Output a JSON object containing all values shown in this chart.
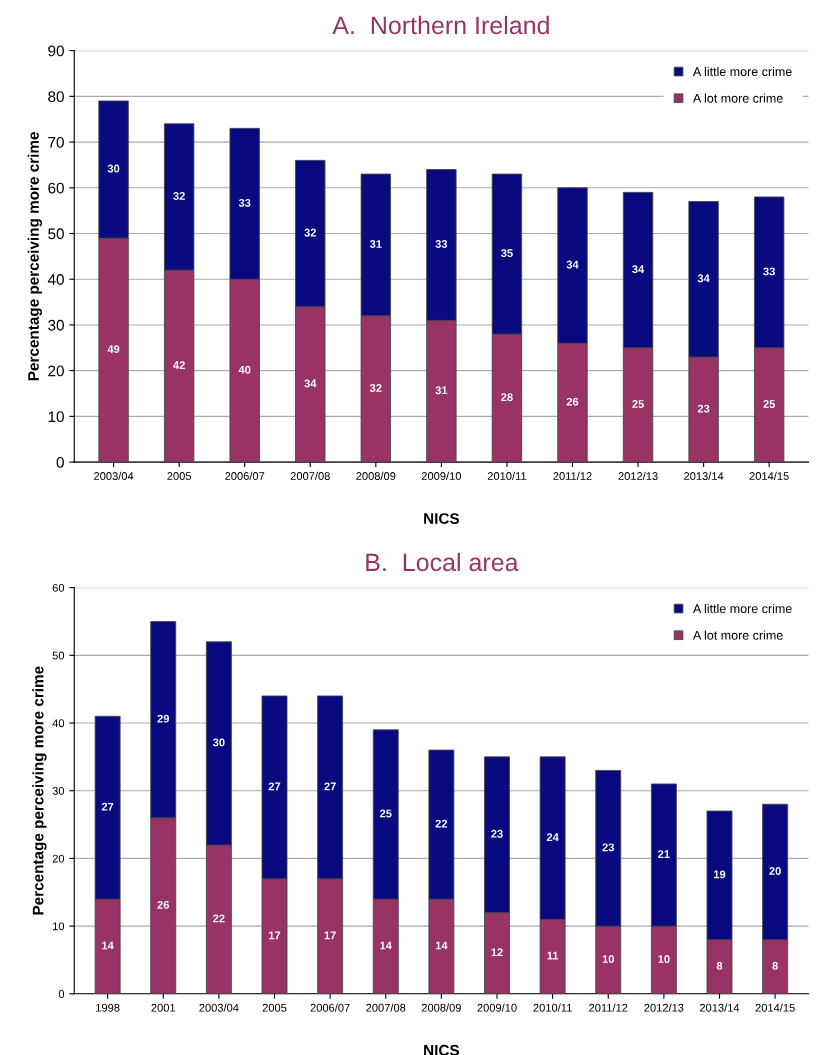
{
  "chart_data": [
    {
      "type": "bar",
      "title": "A.  Northern Ireland",
      "xlabel": "NICS",
      "ylabel": "Percentage perceiving more crime",
      "stacked": true,
      "data_labels": true,
      "grid": "y",
      "legend": "top right",
      "ylim": [
        0,
        90
      ],
      "yticks": [
        0,
        10,
        20,
        30,
        40,
        50,
        60,
        70,
        80,
        90
      ],
      "categories": [
        "2003/04",
        "2005",
        "2006/07",
        "2007/08",
        "2008/09",
        "2009/10",
        "2010/11",
        "2011/12",
        "2012/13",
        "2013/14",
        "2014/15"
      ],
      "series": [
        {
          "name": "A lot more crime",
          "color": "#993366",
          "values": [
            49,
            42,
            40,
            34,
            32,
            31,
            28,
            26,
            25,
            23,
            25
          ]
        },
        {
          "name": "A little more crime",
          "color": "#0a0a80",
          "values": [
            30,
            32,
            33,
            32,
            31,
            33,
            35,
            34,
            34,
            34,
            33
          ]
        }
      ]
    },
    {
      "type": "bar",
      "title": "B.  Local area",
      "xlabel": "NICS",
      "ylabel": "Percentage perceiving more crime",
      "stacked": true,
      "data_labels": true,
      "grid": "y",
      "legend": "top right",
      "ylim": [
        0,
        60
      ],
      "yticks": [
        0,
        10,
        20,
        30,
        40,
        50,
        60
      ],
      "categories": [
        "1998",
        "2001",
        "2003/04",
        "2005",
        "2006/07",
        "2007/08",
        "2008/09",
        "2009/10",
        "2010/11",
        "2011/12",
        "2012/13",
        "2013/14",
        "2014/15"
      ],
      "series": [
        {
          "name": "A lot more crime",
          "color": "#993366",
          "values": [
            14,
            26,
            22,
            17,
            17,
            14,
            14,
            12,
            11,
            10,
            10,
            8,
            8
          ]
        },
        {
          "name": "A little more crime",
          "color": "#0a0a80",
          "values": [
            27,
            29,
            30,
            27,
            27,
            25,
            22,
            23,
            24,
            23,
            21,
            19,
            20
          ]
        }
      ]
    }
  ]
}
